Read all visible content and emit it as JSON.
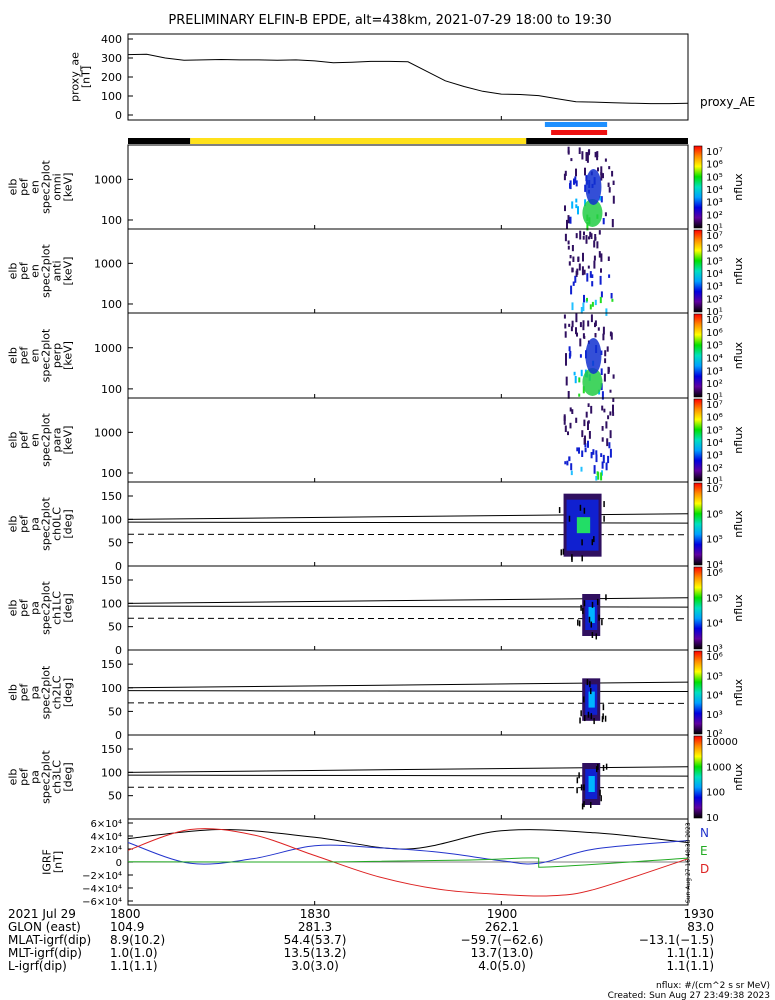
{
  "title": "PRELIMINARY ELFIN-B EPDE, alt=438km, 2021-07-29 18:00 to 19:30",
  "chart_data": [
    {
      "type": "line",
      "id": "proxy_ae",
      "ylabel": [
        "proxy_ae",
        "[nT]"
      ],
      "yticks": [
        "400",
        "300",
        "200",
        "100",
        "0"
      ],
      "legend": "proxy_AE",
      "ylim": [
        0,
        400
      ],
      "x": [
        1800,
        1803,
        1806,
        1809,
        1812,
        1815,
        1818,
        1821,
        1824,
        1827,
        1830,
        1833,
        1836,
        1839,
        1842,
        1845,
        1848,
        1851,
        1854,
        1857,
        1900,
        1903,
        1906,
        1909,
        1912,
        1915,
        1918,
        1921,
        1924,
        1927,
        1930
      ],
      "y": [
        318,
        320,
        300,
        288,
        290,
        292,
        290,
        290,
        288,
        290,
        285,
        275,
        278,
        282,
        282,
        280,
        230,
        180,
        150,
        125,
        110,
        108,
        102,
        85,
        70,
        68,
        65,
        62,
        60,
        60,
        62
      ]
    },
    {
      "type": "heatmap",
      "id": "omni",
      "ylabel": [
        "elb",
        "pef",
        "en",
        "spec2plot",
        "omni",
        "[keV]"
      ],
      "yticks": [
        "1000",
        "100"
      ],
      "cb_ticks": [
        "10⁷",
        "10⁶",
        "10⁵",
        "10⁴",
        "10³",
        "10²",
        "10¹"
      ],
      "cb_label": "nflux"
    },
    {
      "type": "heatmap",
      "id": "anti",
      "ylabel": [
        "elb",
        "pef",
        "en",
        "spec2plot",
        "anti",
        "[keV]"
      ],
      "yticks": [
        "1000",
        "100"
      ],
      "cb_ticks": [
        "10⁷",
        "10⁶",
        "10⁵",
        "10⁴",
        "10³",
        "10²",
        "10¹"
      ],
      "cb_label": "nflux"
    },
    {
      "type": "heatmap",
      "id": "perp",
      "ylabel": [
        "elb",
        "pef",
        "en",
        "spec2plot",
        "perp",
        "[keV]"
      ],
      "yticks": [
        "1000",
        "100"
      ],
      "cb_ticks": [
        "10⁷",
        "10⁶",
        "10⁵",
        "10⁴",
        "10³",
        "10²",
        "10¹"
      ],
      "cb_label": "nflux"
    },
    {
      "type": "heatmap",
      "id": "para",
      "ylabel": [
        "elb",
        "pef",
        "en",
        "spec2plot",
        "para",
        "[keV]"
      ],
      "yticks": [
        "1000",
        "100"
      ],
      "cb_ticks": [
        "10⁷",
        "10⁶",
        "10⁵",
        "10⁴",
        "10³",
        "10²",
        "10¹"
      ],
      "cb_label": "nflux"
    },
    {
      "type": "heatmap",
      "id": "ch0LC",
      "ylabel": [
        "elb",
        "pef",
        "pa",
        "spec2plot",
        "ch0LC",
        "[deg]"
      ],
      "yticks": [
        "150",
        "100",
        "50",
        "0"
      ],
      "cb_ticks": [
        "10⁷",
        "10⁶",
        "10⁵",
        "10⁴"
      ],
      "cb_label": "nflux"
    },
    {
      "type": "heatmap",
      "id": "ch1LC",
      "ylabel": [
        "elb",
        "pef",
        "pa",
        "spec2plot",
        "ch1LC",
        "[deg]"
      ],
      "yticks": [
        "150",
        "100",
        "50",
        "0"
      ],
      "cb_ticks": [
        "10⁶",
        "10⁵",
        "10⁴",
        "10³"
      ],
      "cb_label": "nflux"
    },
    {
      "type": "heatmap",
      "id": "ch2LC",
      "ylabel": [
        "elb",
        "pef",
        "pa",
        "spec2plot",
        "ch2LC",
        "[deg]"
      ],
      "yticks": [
        "150",
        "100",
        "50",
        "0"
      ],
      "cb_ticks": [
        "10⁶",
        "10⁵",
        "10⁴",
        "10³",
        "10²"
      ],
      "cb_label": "nflux"
    },
    {
      "type": "heatmap",
      "id": "ch3LC",
      "ylabel": [
        "elb",
        "pef",
        "pa",
        "spec2plot",
        "ch3LC",
        "[deg]"
      ],
      "yticks": [
        "150",
        "100",
        "50"
      ],
      "cb_ticks": [
        "10000",
        "1000",
        "100",
        "10"
      ],
      "cb_label": "nflux"
    },
    {
      "type": "line",
      "id": "igrf",
      "ylabel": [
        "IGRF",
        "[nT]"
      ],
      "yticks": [
        "6×10⁴",
        "4×10⁴",
        "2×10⁴",
        "0",
        "−2×10⁴",
        "−4×10⁴",
        "−6×10⁴"
      ],
      "ylim": [
        -60000,
        60000
      ],
      "series": [
        {
          "name": "N",
          "color": "#000000",
          "x": [
            1800,
            1815,
            1830,
            1845,
            1900,
            1915,
            1930
          ],
          "y": [
            36000,
            50000,
            38000,
            20000,
            48000,
            45000,
            30000
          ]
        },
        {
          "name": "E",
          "color": "#2233cc",
          "x": [
            1800,
            1810,
            1820,
            1830,
            1840,
            1850,
            1900,
            1906,
            1915,
            1930
          ],
          "y": [
            30000,
            -2000,
            5000,
            25000,
            22000,
            15000,
            2000,
            -2000,
            20000,
            33000
          ]
        },
        {
          "name": "D",
          "color": "#dd2222",
          "x": [
            1800,
            1810,
            1820,
            1830,
            1840,
            1850,
            1900,
            1908,
            1915,
            1930
          ],
          "y": [
            18000,
            50000,
            42000,
            10000,
            -22000,
            -42000,
            -50000,
            -52000,
            -42000,
            5000
          ]
        },
        {
          "name": "green",
          "color": "#22aa22",
          "x": [
            1800,
            1830,
            1855,
            1906,
            1906,
            1930
          ],
          "y": [
            500,
            0,
            3000,
            6000,
            -8000,
            6000
          ]
        }
      ],
      "side_labels": [
        "N",
        "E",
        "D"
      ],
      "stamp": "Sun Aug 27 16:48:38 2023"
    }
  ],
  "bars": {
    "segments": [
      {
        "color": "#000000",
        "from": 1800,
        "to": 1810
      },
      {
        "color": "#ffe11a",
        "from": 1810,
        "to": 1904
      },
      {
        "color": "#000000",
        "from": 1904,
        "to": 1930
      }
    ],
    "blue": [
      1907,
      1917
    ],
    "red": [
      1908,
      1917
    ]
  },
  "x_axis": {
    "ticks": [
      1800,
      1830,
      1900,
      1930
    ],
    "labels": [
      "1800",
      "1830",
      "1900",
      "1930"
    ]
  },
  "orbit_table": [
    {
      "label": "2021 Jul 29",
      "values": [
        "1800",
        "1830",
        "1900",
        "1930"
      ]
    },
    {
      "label": "GLON (east)",
      "values": [
        "104.9",
        "281.3",
        "262.1",
        "83.0"
      ]
    },
    {
      "label": "MLAT-igrf(dip)",
      "values": [
        "8.9(10.2)",
        "54.4(53.7)",
        "−59.7(−62.6)",
        "−13.1(−1.5)"
      ]
    },
    {
      "label": "MLT-igrf(dip)",
      "values": [
        "1.0(1.0)",
        "13.5(13.2)",
        "13.7(13.0)",
        "1.1(1.1)"
      ]
    },
    {
      "label": "L-igrf(dip)",
      "values": [
        "1.1(1.1)",
        "3.0(3.0)",
        "4.0(5.0)",
        "1.1(1.1)"
      ]
    }
  ],
  "footer": {
    "units": "nflux: #/(cm^2 s sr MeV)",
    "created": "Created: Sun Aug 27 23:49:38 2023"
  }
}
